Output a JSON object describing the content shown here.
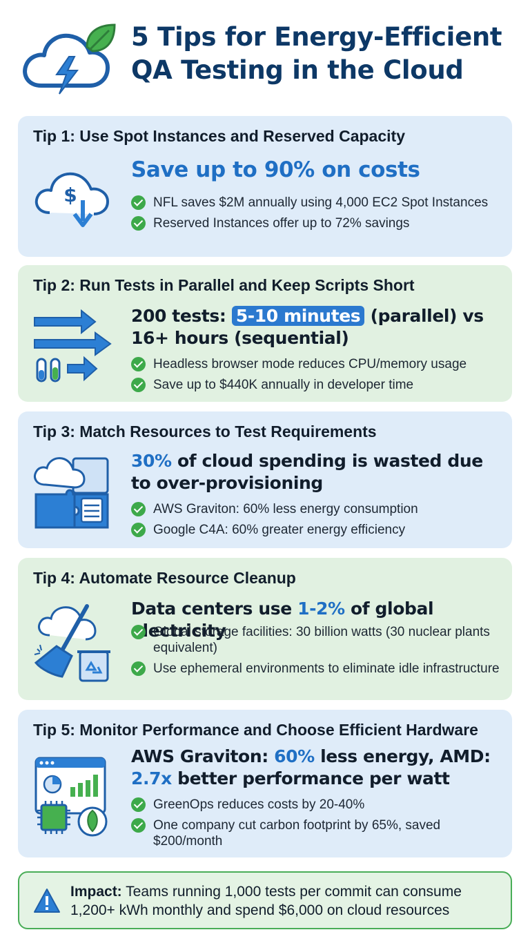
{
  "title": "5 Tips for Energy-Efficient QA Testing in the Cloud",
  "header_icon": "cloud-lightning-leaf-icon",
  "colors": {
    "accent_blue": "#1f6fc4",
    "title_navy": "#0d3866",
    "card_blue": "#dfecf9",
    "card_green": "#e1f1e1",
    "check_green": "#3da94a"
  },
  "tips": [
    {
      "title": "Tip 1: Use Spot Instances and Reserved Capacity",
      "icon": "cloud-dollar-download-icon",
      "headline": "Save up to 90% on costs",
      "bullets": [
        "NFL saves $2M annually using 4,000 EC2 Spot Instances",
        "Reserved Instances offer up to 72% savings"
      ]
    },
    {
      "title": "Tip 2: Run Tests in Parallel and Keep Scripts Short",
      "icon": "parallel-arrows-test-tubes-icon",
      "headline_parts": [
        "200 tests: ",
        "5-10 minutes",
        " (parallel) vs 16+ hours (sequential)"
      ],
      "bullets": [
        "Headless browser mode reduces CPU/memory usage",
        "Save up to $440K annually in developer time"
      ]
    },
    {
      "title": "Tip 3: Match Resources to Test Requirements",
      "icon": "cloud-puzzle-server-icon",
      "headline_parts": [
        "30%",
        " of cloud spending is wasted due to over-provisioning"
      ],
      "bullets": [
        "AWS Graviton: 60% less energy consumption",
        "Google C4A: 60% greater energy efficiency"
      ]
    },
    {
      "title": "Tip 4: Automate Resource Cleanup",
      "icon": "cloud-broom-recycle-icon",
      "headline_parts": [
        "Data centers use ",
        "1-2%",
        " of global electricity"
      ],
      "bullets": [
        "Global storage facilities: 30 billion watts (30 nuclear plants equivalent)",
        "Use ephemeral environments to eliminate idle infrastructure"
      ]
    },
    {
      "title": "Tip 5: Monitor Performance and Choose Efficient Hardware",
      "icon": "dashboard-chip-leaf-icon",
      "headline_parts": [
        "AWS Graviton: ",
        "60%",
        " less energy, AMD: ",
        "2.7x",
        " better performance per watt"
      ],
      "bullets": [
        "GreenOps reduces costs by 20-40%",
        "One company cut carbon footprint by 65%, saved $200/month"
      ]
    }
  ],
  "impact": {
    "icon": "warning-triangle-icon",
    "label": "Impact:",
    "text": " Teams running 1,000 tests per commit can consume 1,200+ kWh monthly and spend $6,000 on cloud resources"
  }
}
